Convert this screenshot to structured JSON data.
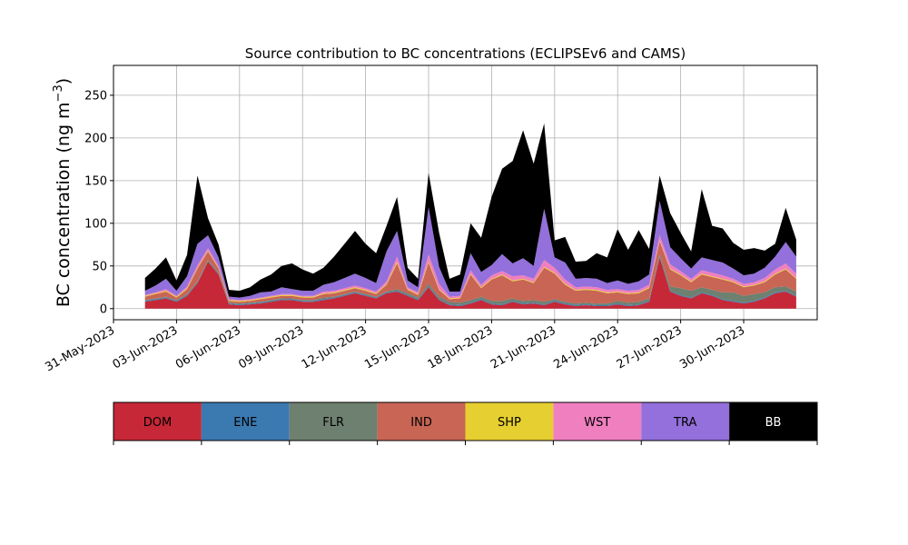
{
  "chart_data": {
    "type": "area",
    "stacked": true,
    "title": "Source contribution to BC concentrations (ECLIPSEv6 and CAMS)",
    "ylabel": "BC concentration (ng m",
    "ylabel_sup": "−3",
    "ylabel_close": ")",
    "xlabel": "",
    "ylim": [
      -13,
      285
    ],
    "xlim": [
      "2023-05-31T00:00",
      "2023-07-03T12:00"
    ],
    "grid": true,
    "y_ticks": [
      0,
      50,
      100,
      150,
      200,
      250
    ],
    "x_ticks": [
      "31-May-2023",
      "03-Jun-2023",
      "06-Jun-2023",
      "09-Jun-2023",
      "12-Jun-2023",
      "15-Jun-2023",
      "18-Jun-2023",
      "21-Jun-2023",
      "24-Jun-2023",
      "27-Jun-2023",
      "30-Jun-2023"
    ],
    "x_tick_dates": [
      "2023-05-31",
      "2023-06-03",
      "2023-06-06",
      "2023-06-09",
      "2023-06-12",
      "2023-06-15",
      "2023-06-18",
      "2023-06-21",
      "2023-06-24",
      "2023-06-27",
      "2023-06-30"
    ],
    "series_colors": [
      "#c62837",
      "#3b79b1",
      "#6e8070",
      "#c86555",
      "#e6cf30",
      "#f07fbf",
      "#9370db",
      "#000000"
    ],
    "x": [
      "2023-06-01T12:00",
      "2023-06-02T00:00",
      "2023-06-02T12:00",
      "2023-06-03T00:00",
      "2023-06-03T12:00",
      "2023-06-04T00:00",
      "2023-06-04T12:00",
      "2023-06-05T00:00",
      "2023-06-05T12:00",
      "2023-06-06T00:00",
      "2023-06-06T12:00",
      "2023-06-07T00:00",
      "2023-06-07T12:00",
      "2023-06-08T00:00",
      "2023-06-08T12:00",
      "2023-06-09T00:00",
      "2023-06-09T12:00",
      "2023-06-10T00:00",
      "2023-06-10T12:00",
      "2023-06-11T00:00",
      "2023-06-11T12:00",
      "2023-06-12T00:00",
      "2023-06-12T12:00",
      "2023-06-13T00:00",
      "2023-06-13T12:00",
      "2023-06-14T00:00",
      "2023-06-14T12:00",
      "2023-06-15T00:00",
      "2023-06-15T12:00",
      "2023-06-16T00:00",
      "2023-06-16T12:00",
      "2023-06-17T00:00",
      "2023-06-17T12:00",
      "2023-06-18T00:00",
      "2023-06-18T12:00",
      "2023-06-19T00:00",
      "2023-06-19T12:00",
      "2023-06-20T00:00",
      "2023-06-20T12:00",
      "2023-06-21T00:00",
      "2023-06-21T12:00",
      "2023-06-22T00:00",
      "2023-06-22T12:00",
      "2023-06-23T00:00",
      "2023-06-23T12:00",
      "2023-06-24T00:00",
      "2023-06-24T12:00",
      "2023-06-25T00:00",
      "2023-06-25T12:00",
      "2023-06-26T00:00",
      "2023-06-26T12:00",
      "2023-06-27T00:00",
      "2023-06-27T12:00",
      "2023-06-28T00:00",
      "2023-06-28T12:00",
      "2023-06-29T00:00",
      "2023-06-29T12:00",
      "2023-06-30T00:00",
      "2023-06-30T12:00",
      "2023-07-01T00:00",
      "2023-07-01T12:00",
      "2023-07-02T00:00",
      "2023-07-02T12:00"
    ],
    "series": [
      {
        "name": "DOM",
        "values": [
          8,
          10,
          12,
          8,
          15,
          30,
          55,
          40,
          5,
          4,
          5,
          6,
          8,
          10,
          10,
          8,
          8,
          10,
          12,
          15,
          18,
          15,
          12,
          18,
          20,
          15,
          10,
          25,
          10,
          4,
          3,
          6,
          10,
          5,
          4,
          8,
          5,
          6,
          4,
          8,
          5,
          3,
          4,
          3,
          3,
          5,
          3,
          4,
          8,
          60,
          20,
          15,
          12,
          18,
          15,
          10,
          8,
          6,
          8,
          12,
          18,
          20,
          14
        ]
      },
      {
        "name": "ENE",
        "values": [
          1,
          1,
          1,
          1,
          1,
          1,
          1,
          1,
          1,
          1,
          1,
          1,
          1,
          1,
          1,
          1,
          1,
          1,
          1,
          1,
          1,
          1,
          1,
          1,
          1,
          1,
          1,
          1,
          1,
          1,
          1,
          1,
          1,
          1,
          1,
          1,
          1,
          1,
          1,
          1,
          1,
          1,
          1,
          1,
          1,
          1,
          1,
          1,
          1,
          1,
          1,
          1,
          1,
          1,
          1,
          1,
          1,
          1,
          1,
          1,
          1,
          1,
          1
        ]
      },
      {
        "name": "FLR",
        "values": [
          1,
          1,
          1,
          1,
          1,
          1,
          1,
          1,
          1,
          1,
          1,
          1,
          1,
          1,
          1,
          1,
          1,
          2,
          1,
          1,
          1,
          1,
          1,
          1,
          2,
          2,
          2,
          3,
          3,
          3,
          3,
          3,
          3,
          3,
          4,
          3,
          3,
          3,
          3,
          2,
          2,
          2,
          2,
          2,
          2,
          3,
          3,
          3,
          3,
          3,
          5,
          8,
          8,
          6,
          6,
          8,
          10,
          8,
          8,
          6,
          6,
          5,
          5
        ]
      },
      {
        "name": "IND",
        "values": [
          4,
          5,
          6,
          3,
          6,
          15,
          10,
          5,
          2,
          2,
          2,
          3,
          3,
          3,
          3,
          3,
          3,
          4,
          4,
          4,
          4,
          4,
          3,
          8,
          30,
          4,
          3,
          25,
          8,
          3,
          5,
          30,
          10,
          25,
          30,
          20,
          25,
          20,
          40,
          30,
          20,
          15,
          15,
          15,
          12,
          10,
          10,
          10,
          12,
          15,
          20,
          15,
          10,
          15,
          15,
          15,
          12,
          10,
          10,
          12,
          15,
          20,
          15
        ]
      },
      {
        "name": "SHP",
        "values": [
          1,
          1,
          1,
          1,
          1,
          1,
          1,
          1,
          1,
          1,
          1,
          1,
          1,
          1,
          1,
          1,
          1,
          1,
          1,
          1,
          1,
          1,
          1,
          1,
          2,
          1,
          1,
          2,
          1,
          1,
          1,
          1,
          1,
          1,
          1,
          1,
          1,
          1,
          1,
          1,
          1,
          1,
          1,
          1,
          1,
          1,
          1,
          1,
          1,
          1,
          1,
          1,
          1,
          1,
          1,
          1,
          1,
          1,
          1,
          1,
          1,
          1,
          1
        ]
      },
      {
        "name": "WST",
        "values": [
          1,
          1,
          2,
          1,
          2,
          3,
          3,
          2,
          1,
          1,
          1,
          1,
          1,
          1,
          1,
          1,
          1,
          2,
          2,
          2,
          2,
          2,
          2,
          3,
          6,
          2,
          2,
          8,
          6,
          2,
          2,
          4,
          3,
          4,
          4,
          5,
          4,
          4,
          8,
          6,
          5,
          3,
          3,
          3,
          3,
          3,
          3,
          3,
          3,
          6,
          5,
          4,
          3,
          4,
          4,
          4,
          3,
          3,
          3,
          4,
          5,
          6,
          5
        ]
      },
      {
        "name": "TRA",
        "values": [
          5,
          8,
          12,
          6,
          12,
          25,
          15,
          10,
          3,
          3,
          4,
          6,
          5,
          8,
          6,
          6,
          6,
          8,
          10,
          12,
          14,
          12,
          10,
          35,
          30,
          8,
          6,
          55,
          20,
          6,
          5,
          20,
          15,
          12,
          20,
          15,
          20,
          15,
          60,
          12,
          20,
          10,
          10,
          10,
          8,
          10,
          8,
          10,
          12,
          40,
          20,
          15,
          12,
          15,
          15,
          15,
          12,
          10,
          10,
          12,
          15,
          25,
          20
        ]
      },
      {
        "name": "BB",
        "values": [
          15,
          20,
          25,
          12,
          25,
          80,
          20,
          15,
          8,
          8,
          10,
          15,
          20,
          25,
          30,
          25,
          20,
          20,
          30,
          40,
          50,
          40,
          35,
          30,
          40,
          15,
          10,
          40,
          40,
          15,
          20,
          35,
          40,
          80,
          100,
          120,
          150,
          120,
          100,
          20,
          30,
          20,
          20,
          30,
          30,
          60,
          40,
          60,
          30,
          30,
          40,
          30,
          20,
          80,
          40,
          40,
          30,
          30,
          30,
          20,
          15,
          40,
          20
        ]
      }
    ]
  },
  "legend": {
    "items": [
      {
        "label": "DOM",
        "color": "#c62837",
        "text_color": "#000000"
      },
      {
        "label": "ENE",
        "color": "#3b79b1",
        "text_color": "#000000"
      },
      {
        "label": "FLR",
        "color": "#6e8070",
        "text_color": "#000000"
      },
      {
        "label": "IND",
        "color": "#c86555",
        "text_color": "#000000"
      },
      {
        "label": "SHP",
        "color": "#e6cf30",
        "text_color": "#000000"
      },
      {
        "label": "WST",
        "color": "#f07fbf",
        "text_color": "#000000"
      },
      {
        "label": "TRA",
        "color": "#9370db",
        "text_color": "#000000"
      },
      {
        "label": "BB",
        "color": "#000000",
        "text_color": "#ffffff"
      }
    ]
  }
}
